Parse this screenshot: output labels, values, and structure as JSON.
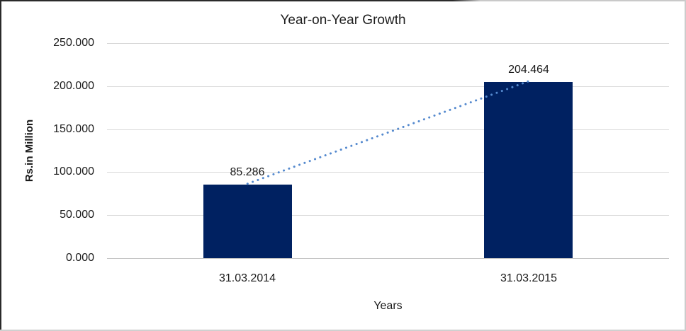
{
  "chart_data": {
    "type": "bar",
    "title": "Year-on-Year Growth",
    "xlabel": "Years",
    "ylabel": "Rs.in Million",
    "categories": [
      "31.03.2014",
      "31.03.2015"
    ],
    "values": [
      85.286,
      204.464
    ],
    "value_labels": [
      "85.286",
      "204.464"
    ],
    "y_ticks": [
      "0.000",
      "50.000",
      "100.000",
      "150.000",
      "200.000",
      "250.000"
    ],
    "ylim": [
      0,
      250
    ],
    "grid": true,
    "legend_position": "none",
    "has_trendline": true,
    "colors": {
      "bar": "#002161",
      "trendline": "#5489ce",
      "gridline": "#d9d9d9",
      "axis_line": "#c6c6c6",
      "text": "#1a1a1a"
    }
  }
}
